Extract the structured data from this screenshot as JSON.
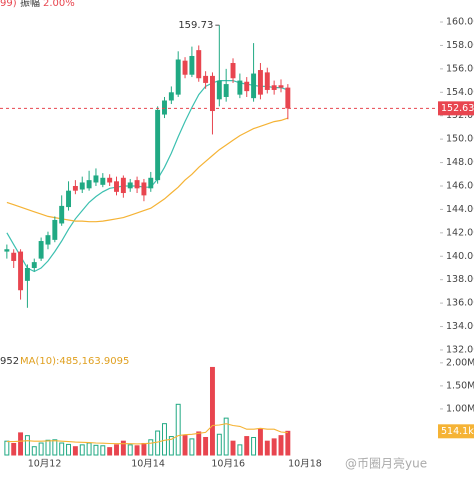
{
  "chart_data": {
    "type": "candlestick",
    "header": {
      "fragment": "99)",
      "amplitude_label": "振幅",
      "amplitude": "2.00%"
    },
    "open": [
      140.4,
      140.3,
      140.4,
      137.9,
      139.0,
      139.8,
      141.0,
      141.4,
      142.8,
      144.2,
      146.0,
      145.7,
      145.8,
      146.3,
      146.1,
      146.7,
      146.4,
      146.7,
      145.8,
      146.5,
      146.3,
      145.8,
      146.5,
      152.1,
      153.3,
      153.8,
      156.7,
      155.5,
      157.6,
      155.4,
      155.4,
      153.4,
      153.6,
      156.5,
      153.8,
      154.9,
      153.5,
      155.9,
      155.7,
      154.6,
      154.6,
      154.4
    ],
    "high": [
      141.0,
      140.6,
      140.6,
      139.3,
      139.8,
      141.6,
      142.1,
      143.4,
      145.2,
      146.4,
      146.5,
      146.8,
      147.3,
      147.5,
      147.1,
      147.0,
      146.8,
      146.9,
      146.6,
      146.8,
      146.6,
      147.2,
      152.8,
      153.6,
      154.5,
      157.5,
      157.0,
      157.9,
      158.0,
      155.8,
      155.7,
      159.73,
      156.0,
      156.9,
      155.6,
      155.3,
      158.2,
      156.5,
      156.1,
      155.0,
      155.1,
      154.7
    ],
    "low": [
      139.8,
      139.0,
      136.3,
      135.6,
      138.7,
      139.6,
      140.6,
      141.2,
      142.6,
      143.9,
      145.3,
      145.4,
      145.6,
      146.0,
      145.9,
      146.0,
      145.2,
      145.0,
      145.5,
      145.4,
      144.7,
      145.5,
      146.2,
      151.8,
      153.0,
      153.6,
      155.2,
      155.3,
      154.9,
      154.3,
      150.4,
      152.8,
      153.2,
      154.8,
      153.5,
      153.6,
      153.2,
      153.4,
      153.9,
      153.8,
      154.0,
      151.7
    ],
    "close": [
      140.6,
      139.6,
      137.1,
      139.0,
      139.5,
      141.3,
      141.8,
      143.1,
      144.3,
      145.6,
      145.6,
      146.3,
      146.5,
      146.9,
      146.7,
      146.3,
      145.5,
      145.4,
      146.3,
      145.8,
      145.2,
      146.7,
      152.5,
      153.3,
      154.0,
      156.8,
      155.5,
      157.1,
      155.2,
      154.8,
      152.4,
      155.0,
      154.7,
      155.2,
      155.0,
      154.1,
      155.6,
      153.8,
      154.2,
      154.2,
      154.4,
      152.63
    ],
    "up_color": "#20a983",
    "down_color": "#e8454f",
    "ma_series": [
      {
        "color": "#3cc0b0",
        "values": [
          142.0,
          141.0,
          140.0,
          139.0,
          138.7,
          139.0,
          139.6,
          140.4,
          141.3,
          142.3,
          143.2,
          143.9,
          144.6,
          145.1,
          145.5,
          145.8,
          145.9,
          146.0,
          146.0,
          146.0,
          145.9,
          145.9,
          146.6,
          147.6,
          148.8,
          150.2,
          151.5,
          152.7,
          153.8,
          154.5,
          154.8,
          155.0,
          155.0,
          155.0,
          154.8,
          154.7,
          154.6,
          154.5,
          154.5,
          154.4,
          154.4,
          154.2
        ]
      },
      {
        "color": "#f5b335",
        "values": [
          144.6,
          144.4,
          144.2,
          144.0,
          143.8,
          143.6,
          143.4,
          143.3,
          143.2,
          143.1,
          143.0,
          143.0,
          142.95,
          142.95,
          143.0,
          143.1,
          143.2,
          143.3,
          143.5,
          143.7,
          143.9,
          144.1,
          144.5,
          144.9,
          145.4,
          145.9,
          146.5,
          147.0,
          147.6,
          148.1,
          148.6,
          149.1,
          149.5,
          149.9,
          150.3,
          150.6,
          150.9,
          151.1,
          151.3,
          151.5,
          151.6,
          151.8
        ]
      }
    ],
    "xlim": [
      -1,
      63.2
    ],
    "xticks": [
      {
        "value": 5.5,
        "label": "10月12"
      },
      {
        "value": 20.6,
        "label": "10月14"
      },
      {
        "value": 32.3,
        "label": "10月16"
      },
      {
        "value": 43.5,
        "label": "10月18"
      }
    ],
    "ylim": [
      131.57,
      161.88
    ],
    "yticks": [
      {
        "value": 160,
        "label": "160.00"
      },
      {
        "value": 158,
        "label": "158.00"
      },
      {
        "value": 156,
        "label": "156.00"
      },
      {
        "value": 154,
        "label": "154.00"
      },
      {
        "value": 152,
        "label": "152.00"
      },
      {
        "value": 150,
        "label": "150.00"
      },
      {
        "value": 148,
        "label": "148.00"
      },
      {
        "value": 146,
        "label": "146.00"
      },
      {
        "value": 144,
        "label": "144.00"
      },
      {
        "value": 142,
        "label": "142.00"
      },
      {
        "value": 140,
        "label": "140.00"
      },
      {
        "value": 138,
        "label": "138.00"
      },
      {
        "value": 136,
        "label": "136.00"
      },
      {
        "value": 134,
        "label": "134.00"
      },
      {
        "value": 132,
        "label": "132.00"
      }
    ],
    "last_price": 152.63,
    "volume": {
      "prefix": "952",
      "ma_label": "MA(10):485,163.9095",
      "values": [
        300000,
        250000,
        480000,
        420000,
        180000,
        260000,
        320000,
        330000,
        260000,
        230000,
        180000,
        220000,
        260000,
        210000,
        200000,
        160000,
        220000,
        300000,
        220000,
        200000,
        250000,
        330000,
        520000,
        680000,
        400000,
        1100000,
        420000,
        350000,
        500000,
        380000,
        1900000,
        450000,
        800000,
        300000,
        220000,
        400000,
        380000,
        560000,
        300000,
        350000,
        420000,
        514100
      ],
      "ma": {
        "color": "#f5b335",
        "values": [
          290000,
          290000,
          300000,
          310000,
          300000,
          300000,
          305000,
          310000,
          300000,
          290000,
          280000,
          275000,
          270000,
          260000,
          255000,
          250000,
          245000,
          245000,
          245000,
          240000,
          245000,
          255000,
          280000,
          320000,
          340000,
          420000,
          440000,
          450000,
          470000,
          490000,
          640000,
          650000,
          680000,
          640000,
          620000,
          560000,
          560000,
          580000,
          560000,
          560000,
          500000,
          485000
        ]
      },
      "ylim": [
        0,
        2170000
      ],
      "yticks": [
        {
          "value": 1000000,
          "label": "1.00M"
        },
        {
          "value": 1500000,
          "label": "1.50M"
        },
        {
          "value": 2000000,
          "label": "2.00M"
        }
      ],
      "current": {
        "value": 514100,
        "label": "514.1k"
      }
    },
    "watermark": "@币圈月亮yue"
  }
}
